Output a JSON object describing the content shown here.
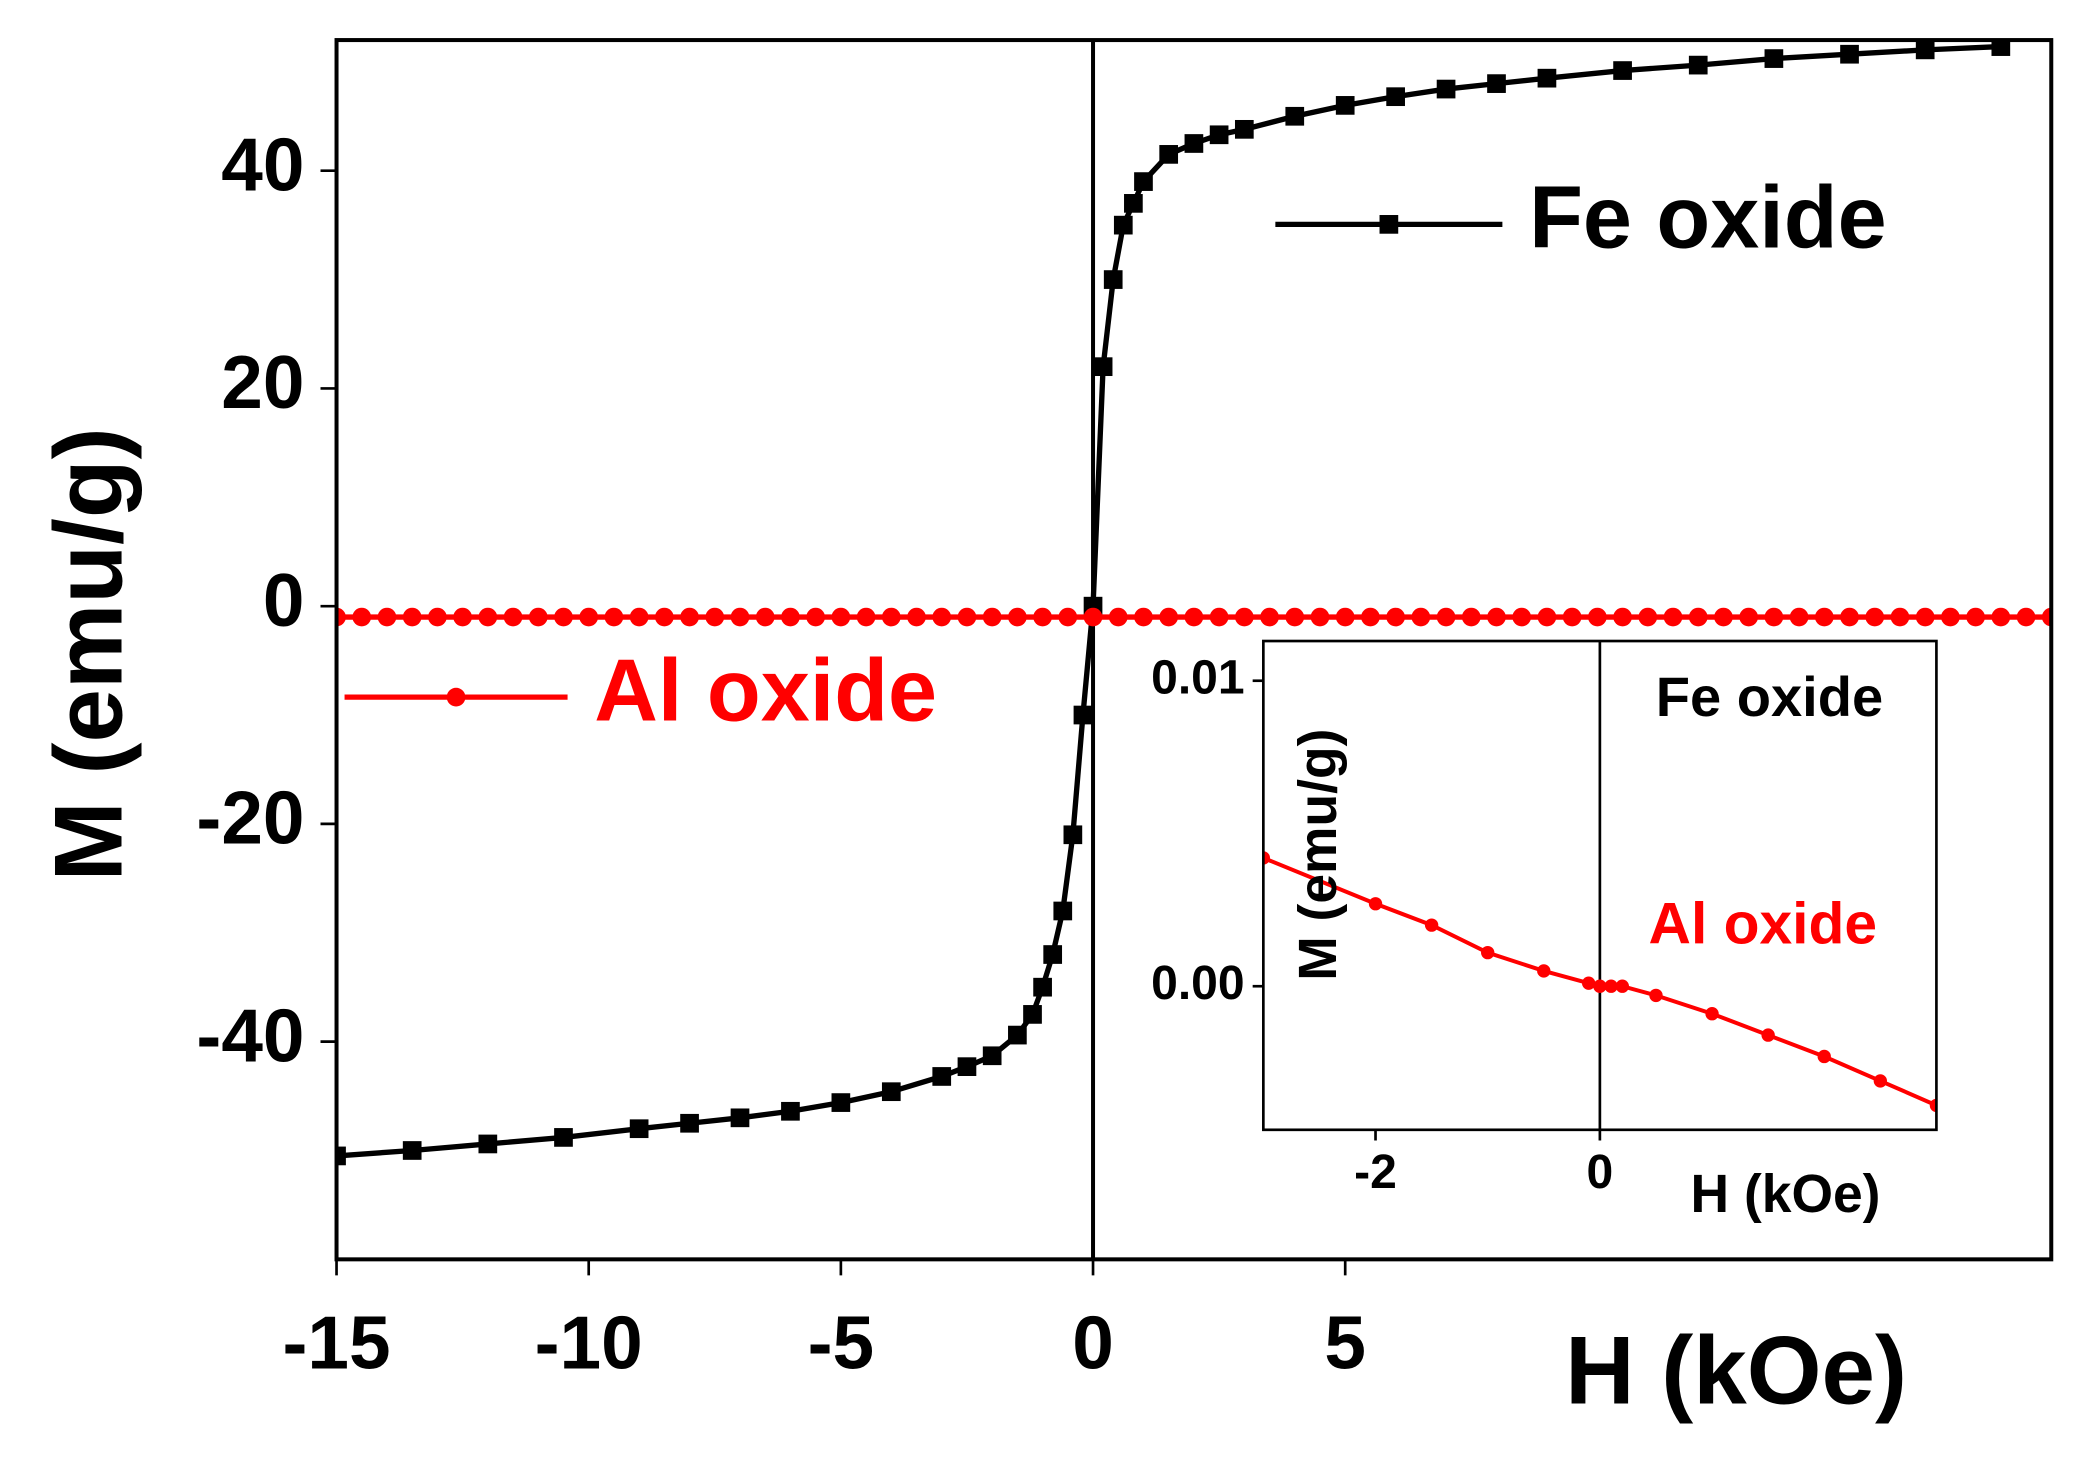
{
  "chart_data": [
    {
      "type": "line",
      "x_label": "H (kOe)",
      "y_label": "M (emu/g)",
      "xlim": [
        -15,
        19
      ],
      "xticks": [
        -15,
        -10,
        -5,
        0,
        5
      ],
      "ylim": [
        -60,
        52
      ],
      "yticks": [
        -40,
        -20,
        0,
        20,
        40
      ],
      "series": [
        {
          "name": "Fe oxide",
          "color": "#000000",
          "marker": "square",
          "x": [
            -15,
            -13.5,
            -12,
            -10.5,
            -9,
            -8,
            -7,
            -6,
            -5,
            -4,
            -3,
            -2.5,
            -2,
            -1.5,
            -1.2,
            -1,
            -0.8,
            -0.6,
            -0.4,
            -0.2,
            0,
            0.2,
            0.4,
            0.6,
            0.8,
            1,
            1.5,
            2,
            2.5,
            3,
            4,
            5,
            6,
            7,
            8,
            9,
            10.5,
            12,
            13.5,
            15,
            16.5,
            18
          ],
          "values": [
            -50.5,
            -50,
            -49.4,
            -48.8,
            -48,
            -47.5,
            -47,
            -46.4,
            -45.6,
            -44.6,
            -43.2,
            -42.3,
            -41.3,
            -39.4,
            -37.5,
            -35,
            -32,
            -28,
            -21,
            -10,
            0,
            22,
            30,
            35,
            37,
            39,
            41.5,
            42.5,
            43.3,
            43.8,
            45,
            46,
            46.8,
            47.5,
            48,
            48.5,
            49.2,
            49.7,
            50.3,
            50.7,
            51.1,
            51.4
          ]
        },
        {
          "name": "Al oxide",
          "color": "#ff0000",
          "marker": "circle",
          "x": [
            -15,
            -14.5,
            -14,
            -13.5,
            -13,
            -12.5,
            -12,
            -11.5,
            -11,
            -10.5,
            -10,
            -9.5,
            -9,
            -8.5,
            -8,
            -7.5,
            -7,
            -6.5,
            -6,
            -5.5,
            -5,
            -4.5,
            -4,
            -3.5,
            -3,
            -2.5,
            -2,
            -1.5,
            -1,
            -0.5,
            0,
            0.5,
            1,
            1.5,
            2,
            2.5,
            3,
            3.5,
            4,
            4.5,
            5,
            5.5,
            6,
            6.5,
            7,
            7.5,
            8,
            8.5,
            9,
            9.5,
            10,
            10.5,
            11,
            11.5,
            12,
            12.5,
            13,
            13.5,
            14,
            14.5,
            15,
            15.5,
            16,
            16.5,
            17,
            17.5,
            18,
            18.5,
            19
          ],
          "values": [
            -1,
            -1,
            -1,
            -1,
            -1,
            -1,
            -1,
            -1,
            -1,
            -1,
            -1,
            -1,
            -1,
            -1,
            -1,
            -1,
            -1,
            -1,
            -1,
            -1,
            -1,
            -1,
            -1,
            -1,
            -1,
            -1,
            -1,
            -1,
            -1,
            -1,
            -1,
            -1,
            -1,
            -1,
            -1,
            -1,
            -1,
            -1,
            -1,
            -1,
            -1,
            -1,
            -1,
            -1,
            -1,
            -1,
            -1,
            -1,
            -1,
            -1,
            -1,
            -1,
            -1,
            -1,
            -1,
            -1,
            -1,
            -1,
            -1,
            -1,
            -1,
            -1,
            -1,
            -1,
            -1,
            -1,
            -1,
            -1,
            -1
          ]
        }
      ]
    },
    {
      "type": "line",
      "x_label": "H (kOe)",
      "y_label": "M (emu/g)",
      "xlim": [
        -3,
        3
      ],
      "xticks": [
        -2,
        0
      ],
      "ylim": [
        -0.0047,
        0.0113
      ],
      "yticks": [
        {
          "value": 0,
          "label": "0.00"
        },
        {
          "value": 0.01,
          "label": "0.01"
        }
      ],
      "annotations": [
        {
          "text": "Fe oxide",
          "color": "#000000"
        }
      ],
      "series": [
        {
          "name": "Al oxide",
          "color": "#ff0000",
          "marker": "circle",
          "x": [
            -3,
            -2,
            -1.5,
            -1,
            -0.5,
            -0.1,
            0,
            0.1,
            0.2,
            0.5,
            1,
            1.5,
            2,
            2.5,
            3
          ],
          "values": [
            0.0042,
            0.0027,
            0.002,
            0.0011,
            0.0005,
            0.0001,
            0,
            0,
            0,
            -0.0003,
            -0.0009,
            -0.0016,
            -0.0023,
            -0.0031,
            -0.0039
          ]
        }
      ]
    }
  ]
}
